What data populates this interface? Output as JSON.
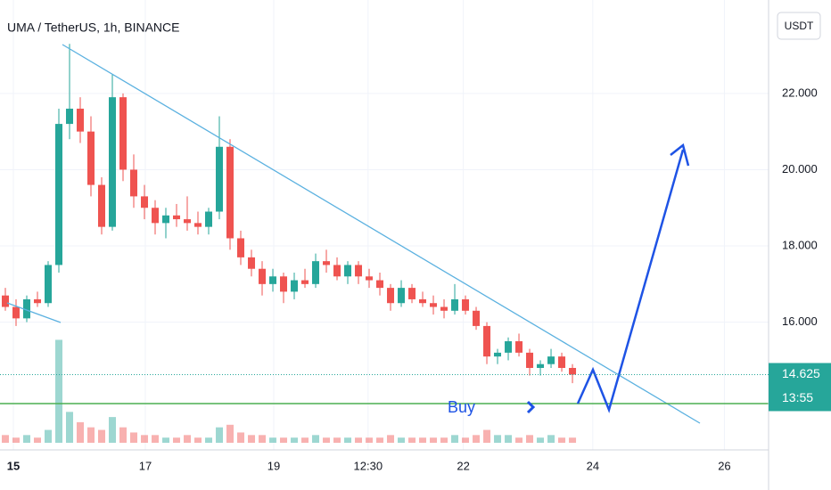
{
  "chart_data": {
    "type": "candlestick",
    "title": "UMA / TetherUS, 1h, BINANCE",
    "currency": "USDT",
    "annotation": "Buy",
    "last_price": 14.625,
    "countdown": "13:55",
    "up_color": "#26a69a",
    "down_color": "#ef5350",
    "grid": true,
    "open": [
      16.7,
      16.4,
      16.1,
      16.6,
      16.5,
      17.5,
      21.2,
      21.6,
      21.0,
      19.6,
      18.5,
      21.9,
      20.0,
      19.3,
      19.0,
      18.6,
      18.8,
      18.7,
      18.6,
      18.5,
      18.9,
      20.6,
      18.2,
      17.7,
      17.4,
      17.0,
      17.2,
      16.8,
      17.1,
      17.0,
      17.6,
      17.5,
      17.2,
      17.5,
      17.2,
      17.1,
      16.9,
      16.5,
      16.9,
      16.6,
      16.5,
      16.4,
      16.3,
      16.6,
      16.3,
      15.9,
      15.1,
      15.2,
      15.5,
      15.2,
      14.8,
      14.9,
      15.1,
      14.8
    ],
    "high": [
      16.9,
      16.6,
      16.7,
      16.8,
      17.6,
      21.6,
      23.3,
      21.9,
      21.4,
      19.8,
      22.5,
      22.0,
      20.4,
      19.6,
      19.2,
      19.0,
      19.1,
      19.3,
      18.9,
      19.0,
      21.4,
      20.8,
      18.4,
      17.9,
      17.6,
      17.4,
      17.3,
      17.3,
      17.4,
      17.8,
      17.9,
      17.7,
      17.6,
      17.6,
      17.4,
      17.3,
      17.0,
      17.1,
      17.0,
      16.8,
      16.7,
      16.6,
      17.0,
      16.7,
      16.4,
      16.0,
      15.3,
      15.6,
      15.7,
      15.3,
      15.0,
      15.3,
      15.2,
      14.9
    ],
    "low": [
      16.3,
      15.9,
      16.0,
      16.4,
      16.4,
      17.3,
      20.8,
      20.7,
      19.3,
      18.3,
      18.4,
      19.7,
      19.0,
      18.7,
      18.3,
      18.2,
      18.5,
      18.4,
      18.3,
      18.3,
      18.7,
      17.9,
      17.5,
      17.2,
      16.7,
      16.8,
      16.5,
      16.6,
      16.9,
      16.9,
      17.3,
      17.1,
      17.0,
      17.0,
      16.9,
      16.7,
      16.3,
      16.4,
      16.5,
      16.4,
      16.2,
      16.1,
      16.2,
      16.2,
      15.8,
      14.9,
      14.9,
      15.0,
      15.1,
      14.6,
      14.6,
      14.8,
      14.7,
      14.4
    ],
    "close": [
      16.4,
      16.1,
      16.6,
      16.5,
      17.5,
      21.2,
      21.6,
      21.0,
      19.6,
      18.5,
      21.9,
      20.0,
      19.3,
      19.0,
      18.6,
      18.8,
      18.7,
      18.6,
      18.5,
      18.9,
      20.6,
      18.2,
      17.7,
      17.4,
      17.0,
      17.2,
      16.8,
      17.1,
      17.0,
      17.6,
      17.5,
      17.2,
      17.5,
      17.2,
      17.1,
      16.9,
      16.5,
      16.9,
      16.6,
      16.5,
      16.4,
      16.3,
      16.6,
      16.3,
      15.9,
      15.1,
      15.2,
      15.5,
      15.2,
      14.8,
      14.9,
      15.1,
      14.8,
      14.625
    ],
    "volume": [
      3,
      2,
      3,
      2,
      5,
      40,
      12,
      8,
      6,
      5,
      10,
      6,
      4,
      3,
      3,
      2,
      2,
      3,
      2,
      2,
      6,
      7,
      4,
      3,
      3,
      2,
      2,
      2,
      2,
      3,
      2,
      2,
      2,
      2,
      2,
      2,
      3,
      2,
      2,
      2,
      2,
      2,
      3,
      2,
      3,
      5,
      3,
      3,
      2,
      3,
      2,
      3,
      2,
      2
    ],
    "volume_lim": [
      0,
      45
    ],
    "ylim": [
      12.65,
      24.45
    ],
    "yticks": [
      {
        "value": 16,
        "label": "16.000"
      },
      {
        "value": 18,
        "label": "18.000"
      },
      {
        "value": 20,
        "label": "20.000"
      },
      {
        "value": 22,
        "label": "22.000"
      }
    ],
    "xlim": [
      -0.5,
      71.33
    ],
    "xticks": [
      {
        "value": 0.75,
        "label": "15"
      },
      {
        "value": 13.08,
        "label": "17"
      },
      {
        "value": 25.08,
        "label": "19"
      },
      {
        "value": 33.9,
        "label": "12:30"
      },
      {
        "value": 42.8,
        "label": "22"
      },
      {
        "value": 54.9,
        "label": "24"
      },
      {
        "value": 67.2,
        "label": "26"
      }
    ]
  }
}
